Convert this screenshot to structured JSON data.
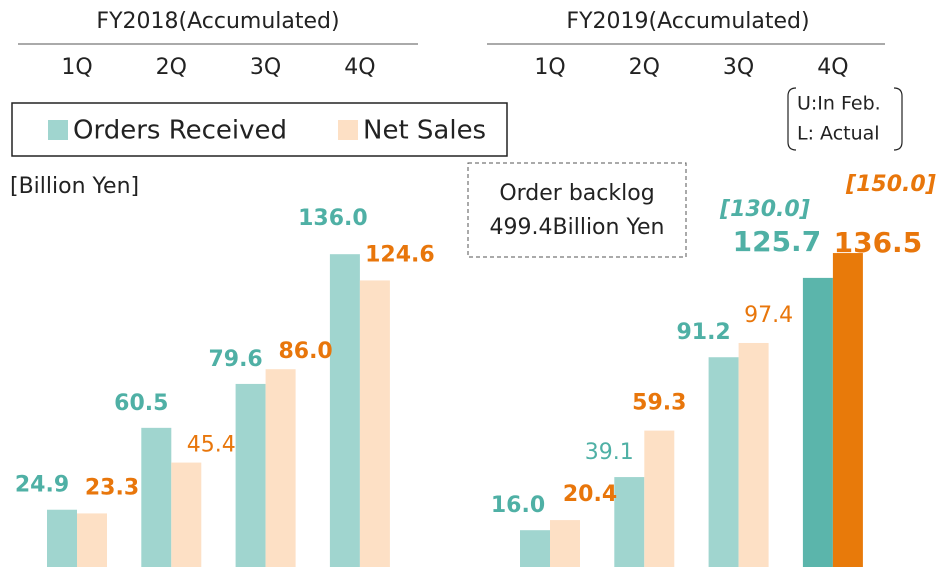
{
  "chart_data": {
    "type": "bar",
    "group_titles": [
      "FY2018(Accumulated)",
      "FY2019(Accumulated)"
    ],
    "categories": [
      "1Q",
      "2Q",
      "3Q",
      "4Q",
      "1Q",
      "2Q",
      "3Q",
      "4Q"
    ],
    "unit_label": "[Billion Yen]",
    "note": [
      "U:In Feb.",
      "L: Actual"
    ],
    "backlog_note": [
      "Order backlog",
      "499.4Billion Yen"
    ],
    "ylim": [
      0,
      140
    ],
    "series": [
      {
        "name": "Orders Received",
        "color": "#a0d5cf",
        "label_color": "#4fb0a5",
        "colors": [
          "#a0d5cf",
          "#a0d5cf",
          "#a0d5cf",
          "#a0d5cf",
          "#a0d5cf",
          "#a0d5cf",
          "#a0d5cf",
          "#5bb5ab"
        ],
        "values": [
          24.9,
          60.5,
          79.6,
          136.0,
          16.0,
          39.1,
          91.2,
          125.7
        ],
        "value_labels": [
          "24.9",
          "60.5",
          "79.6",
          "136.0",
          "16.0",
          "39.1",
          "91.2",
          "125.7"
        ],
        "forecast_label": "[130.0]"
      },
      {
        "name": "Net Sales",
        "color": "#fde0c5",
        "label_color": "#e8760b",
        "colors": [
          "#fde0c5",
          "#fde0c5",
          "#fde0c5",
          "#fde0c5",
          "#fde0c5",
          "#fde0c5",
          "#fde0c5",
          "#e87a0a"
        ],
        "values": [
          23.3,
          45.4,
          86.0,
          124.6,
          20.4,
          59.3,
          97.4,
          136.5
        ],
        "value_labels": [
          "23.3",
          "45.4",
          "86.0",
          "124.6",
          "20.4",
          "59.3",
          "97.4",
          "136.5"
        ],
        "forecast_label": "[150.0]"
      }
    ]
  }
}
